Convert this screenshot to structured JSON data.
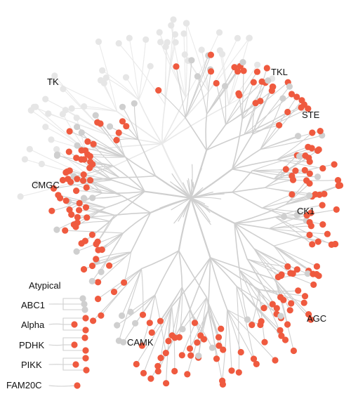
{
  "colors": {
    "background": "#ffffff",
    "branch": "#cfcfcf",
    "faded_branch": "#e9e9e9",
    "highlight_node": "#ef5a3f",
    "plain_node": "#cfcfcf",
    "faded_node": "#e6e6e6",
    "label_text": "#111111"
  },
  "group_labels": {
    "tk": "TK",
    "tkl": "TKL",
    "ste": "STE",
    "cmgc": "CMGC",
    "ck1": "CK1",
    "agc": "AGC",
    "camk": "CAMK"
  },
  "atypical_panel": {
    "title": "Atypical",
    "families": [
      "ABC1",
      "Alpha",
      "PDHK",
      "PIKK",
      "FAM20C"
    ]
  }
}
